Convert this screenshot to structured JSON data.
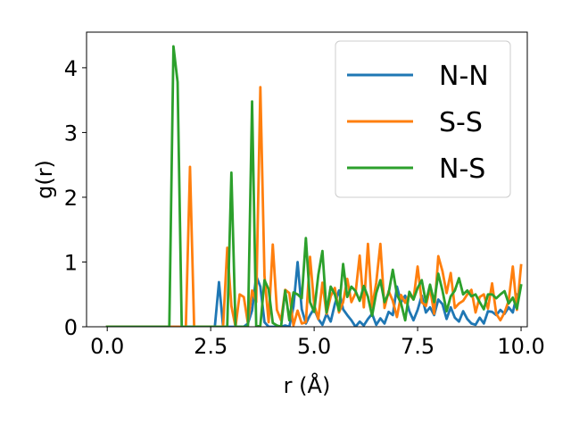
{
  "chart_data": {
    "type": "line",
    "xlabel": "r (Å)",
    "ylabel": "g(r)",
    "xlim": [
      -0.5,
      10.15
    ],
    "ylim": [
      0,
      4.55
    ],
    "xticks": [
      0.0,
      2.5,
      5.0,
      7.5,
      10.0
    ],
    "xtick_labels": [
      "0.0",
      "2.5",
      "5.0",
      "7.5",
      "10.0"
    ],
    "yticks": [
      0,
      1,
      2,
      3,
      4
    ],
    "ytick_labels": [
      "0",
      "1",
      "2",
      "3",
      "4"
    ],
    "grid": false,
    "legend": "top-right",
    "series": [
      {
        "name": "N-N",
        "color": "#1f77b4",
        "points": [
          [
            0.0,
            0
          ],
          [
            2.5,
            0
          ],
          [
            2.6,
            0
          ],
          [
            2.7,
            0.69
          ],
          [
            2.8,
            0
          ],
          [
            3.2,
            0
          ],
          [
            3.3,
            0
          ],
          [
            3.4,
            0.05
          ],
          [
            3.5,
            0.25
          ],
          [
            3.6,
            0.78
          ],
          [
            3.7,
            0.62
          ],
          [
            3.8,
            0.07
          ],
          [
            3.9,
            0
          ],
          [
            4.2,
            0
          ],
          [
            4.3,
            0.02
          ],
          [
            4.4,
            0
          ],
          [
            4.5,
            0.31
          ],
          [
            4.6,
            1.0
          ],
          [
            4.7,
            0.27
          ],
          [
            4.8,
            0.05
          ],
          [
            4.9,
            0.18
          ],
          [
            5.0,
            0.28
          ],
          [
            5.1,
            0.12
          ],
          [
            5.2,
            0.03
          ],
          [
            5.3,
            0.2
          ],
          [
            5.4,
            0.08
          ],
          [
            5.5,
            0.35
          ],
          [
            5.6,
            0.56
          ],
          [
            5.7,
            0.27
          ],
          [
            5.8,
            0.18
          ],
          [
            5.9,
            0.1
          ],
          [
            6.0,
            0
          ],
          [
            6.1,
            0.08
          ],
          [
            6.2,
            0.02
          ],
          [
            6.3,
            0.12
          ],
          [
            6.4,
            0.2
          ],
          [
            6.5,
            0.03
          ],
          [
            6.6,
            0.13
          ],
          [
            6.7,
            0.05
          ],
          [
            6.8,
            0.23
          ],
          [
            6.9,
            0.18
          ],
          [
            7.0,
            0.62
          ],
          [
            7.1,
            0.38
          ],
          [
            7.2,
            0.48
          ],
          [
            7.3,
            0.24
          ],
          [
            7.4,
            0.1
          ],
          [
            7.5,
            0.26
          ],
          [
            7.6,
            0.48
          ],
          [
            7.7,
            0.22
          ],
          [
            7.8,
            0.3
          ],
          [
            7.9,
            0.18
          ],
          [
            8.0,
            0.42
          ],
          [
            8.1,
            0.35
          ],
          [
            8.2,
            0.12
          ],
          [
            8.3,
            0.3
          ],
          [
            8.4,
            0.14
          ],
          [
            8.5,
            0.08
          ],
          [
            8.6,
            0.24
          ],
          [
            8.7,
            0.12
          ],
          [
            8.8,
            0.05
          ],
          [
            8.9,
            0.03
          ],
          [
            9.0,
            0.14
          ],
          [
            9.1,
            0.05
          ],
          [
            9.2,
            0.24
          ],
          [
            9.3,
            0.23
          ],
          [
            9.4,
            0.18
          ],
          [
            9.5,
            0.26
          ],
          [
            9.6,
            0.2
          ],
          [
            9.7,
            0.3
          ],
          [
            9.8,
            0.22
          ],
          [
            9.9,
            0.5
          ]
        ]
      },
      {
        "name": "S-S",
        "color": "#ff7f0e",
        "points": [
          [
            0.0,
            0
          ],
          [
            1.8,
            0
          ],
          [
            1.9,
            0
          ],
          [
            2.0,
            2.47
          ],
          [
            2.1,
            0
          ],
          [
            2.8,
            0
          ],
          [
            2.9,
            1.22
          ],
          [
            3.0,
            0.32
          ],
          [
            3.1,
            0
          ],
          [
            3.2,
            0.5
          ],
          [
            3.3,
            0.46
          ],
          [
            3.4,
            0.05
          ],
          [
            3.5,
            0.56
          ],
          [
            3.6,
            0.38
          ],
          [
            3.7,
            3.7
          ],
          [
            3.8,
            0.78
          ],
          [
            3.9,
            0.07
          ],
          [
            4.0,
            1.27
          ],
          [
            4.1,
            0.26
          ],
          [
            4.2,
            0.1
          ],
          [
            4.3,
            0.57
          ],
          [
            4.4,
            0.52
          ],
          [
            4.5,
            0.02
          ],
          [
            4.6,
            0.25
          ],
          [
            4.7,
            0.05
          ],
          [
            4.8,
            0.07
          ],
          [
            4.9,
            1.08
          ],
          [
            5.0,
            0.34
          ],
          [
            5.1,
            0.12
          ],
          [
            5.2,
            0.68
          ],
          [
            5.3,
            0.2
          ],
          [
            5.4,
            0.47
          ],
          [
            5.5,
            0.6
          ],
          [
            5.6,
            0.22
          ],
          [
            5.7,
            0.38
          ],
          [
            5.8,
            0.74
          ],
          [
            5.9,
            0.38
          ],
          [
            6.0,
            0.52
          ],
          [
            6.1,
            1.1
          ],
          [
            6.2,
            0.3
          ],
          [
            6.3,
            1.28
          ],
          [
            6.4,
            0.3
          ],
          [
            6.5,
            0.68
          ],
          [
            6.6,
            1.28
          ],
          [
            6.7,
            0.29
          ],
          [
            6.8,
            0.55
          ],
          [
            6.9,
            0.4
          ],
          [
            7.0,
            0.15
          ],
          [
            7.1,
            0.49
          ],
          [
            7.2,
            0.37
          ],
          [
            7.3,
            0.5
          ],
          [
            7.4,
            0.42
          ],
          [
            7.5,
            0.93
          ],
          [
            7.6,
            0.38
          ],
          [
            7.7,
            0.32
          ],
          [
            7.8,
            0.6
          ],
          [
            7.9,
            0.2
          ],
          [
            8.0,
            1.09
          ],
          [
            8.1,
            0.86
          ],
          [
            8.2,
            0.52
          ],
          [
            8.3,
            0.83
          ],
          [
            8.4,
            0.29
          ],
          [
            8.5,
            0.36
          ],
          [
            8.6,
            0.4
          ],
          [
            8.7,
            0.5
          ],
          [
            8.8,
            0.57
          ],
          [
            8.9,
            0.22
          ],
          [
            9.0,
            0.46
          ],
          [
            9.1,
            0.5
          ],
          [
            9.2,
            0.28
          ],
          [
            9.3,
            0.67
          ],
          [
            9.4,
            0.2
          ],
          [
            9.5,
            0.1
          ],
          [
            9.6,
            0.22
          ],
          [
            9.7,
            0.4
          ],
          [
            9.8,
            0.93
          ],
          [
            9.9,
            0.26
          ],
          [
            10.0,
            0.95
          ]
        ]
      },
      {
        "name": "N-S",
        "color": "#2ca02c",
        "points": [
          [
            0.0,
            0
          ],
          [
            1.4,
            0
          ],
          [
            1.5,
            0
          ],
          [
            1.6,
            4.33
          ],
          [
            1.7,
            3.78
          ],
          [
            1.8,
            0
          ],
          [
            2.8,
            0
          ],
          [
            2.9,
            0
          ],
          [
            3.0,
            2.38
          ],
          [
            3.1,
            0
          ],
          [
            3.4,
            0
          ],
          [
            3.5,
            3.48
          ],
          [
            3.6,
            0
          ],
          [
            3.7,
            0.02
          ],
          [
            3.8,
            0.72
          ],
          [
            3.9,
            0.58
          ],
          [
            4.0,
            0.06
          ],
          [
            4.1,
            0.02
          ],
          [
            4.2,
            0
          ],
          [
            4.3,
            0.56
          ],
          [
            4.4,
            0.1
          ],
          [
            4.5,
            0.53
          ],
          [
            4.6,
            0.5
          ],
          [
            4.7,
            0.44
          ],
          [
            4.8,
            1.37
          ],
          [
            4.9,
            0.38
          ],
          [
            5.0,
            0.23
          ],
          [
            5.1,
            0.8
          ],
          [
            5.2,
            1.17
          ],
          [
            5.3,
            0.22
          ],
          [
            5.4,
            0.62
          ],
          [
            5.5,
            0.5
          ],
          [
            5.6,
            0.25
          ],
          [
            5.7,
            0.97
          ],
          [
            5.8,
            0.46
          ],
          [
            5.9,
            0.62
          ],
          [
            6.0,
            0.55
          ],
          [
            6.1,
            0.4
          ],
          [
            6.2,
            0.63
          ],
          [
            6.3,
            0.46
          ],
          [
            6.4,
            0.17
          ],
          [
            6.5,
            0.52
          ],
          [
            6.6,
            0.72
          ],
          [
            6.7,
            0.38
          ],
          [
            6.8,
            0.52
          ],
          [
            6.9,
            0.88
          ],
          [
            7.0,
            0.5
          ],
          [
            7.1,
            0.36
          ],
          [
            7.2,
            0.1
          ],
          [
            7.3,
            0.54
          ],
          [
            7.4,
            0.42
          ],
          [
            7.5,
            0.6
          ],
          [
            7.6,
            0.72
          ],
          [
            7.7,
            0.38
          ],
          [
            7.8,
            0.65
          ],
          [
            7.9,
            0.38
          ],
          [
            8.0,
            0.82
          ],
          [
            8.1,
            0.56
          ],
          [
            8.2,
            0.24
          ],
          [
            8.3,
            0.47
          ],
          [
            8.4,
            0.56
          ],
          [
            8.5,
            0.75
          ],
          [
            8.6,
            0.5
          ],
          [
            8.7,
            0.56
          ],
          [
            8.8,
            0.47
          ],
          [
            8.9,
            0.5
          ],
          [
            9.0,
            0.38
          ],
          [
            9.1,
            0.27
          ],
          [
            9.2,
            0.5
          ],
          [
            9.3,
            0.5
          ],
          [
            9.4,
            0.44
          ],
          [
            9.5,
            0.5
          ],
          [
            9.6,
            0.55
          ],
          [
            9.7,
            0.36
          ],
          [
            9.8,
            0.45
          ],
          [
            9.9,
            0.28
          ],
          [
            10.0,
            0.64
          ]
        ]
      }
    ]
  }
}
